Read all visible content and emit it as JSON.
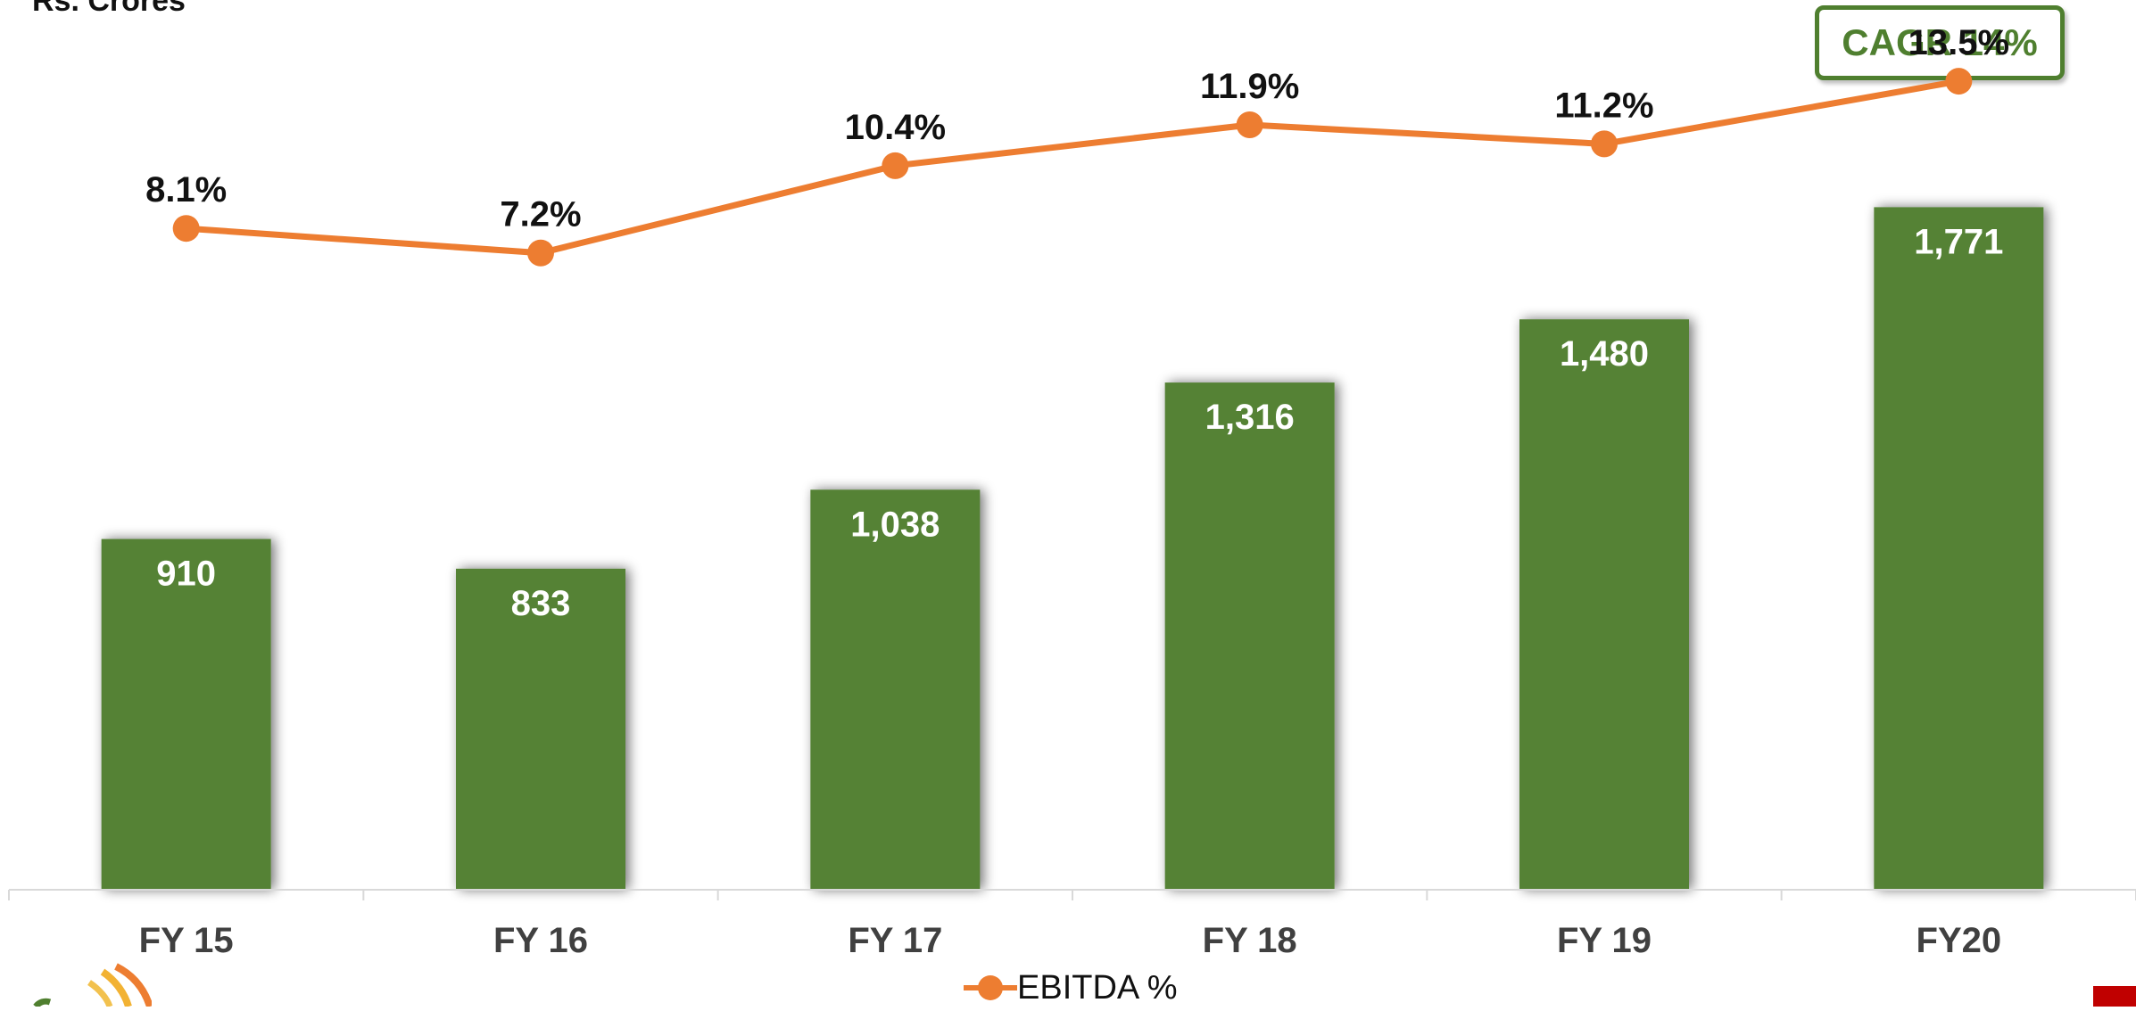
{
  "unit_label": "Rs. Crores",
  "cagr_label": "CAGR 14%",
  "colors": {
    "bar": "#548235",
    "line": "#ed7d31",
    "axis": "#d9d9d9",
    "accent_red": "#c00000"
  },
  "chart_data": {
    "type": "bar",
    "categories": [
      "FY 15",
      "FY 16",
      "FY 17",
      "FY 18",
      "FY 19",
      "FY20"
    ],
    "series": [
      {
        "values": [
          910,
          833,
          1038,
          1316,
          1480,
          1771
        ],
        "labels": [
          "910",
          "833",
          "1,038",
          "1,316",
          "1,480",
          "1,771"
        ]
      },
      {
        "name": "EBITDA %",
        "type": "line",
        "values": [
          8.1,
          7.2,
          10.4,
          11.9,
          11.2,
          13.5
        ],
        "labels": [
          "8.1%",
          "7.2%",
          "10.4%",
          "11.9%",
          "11.2%",
          "13.5%"
        ]
      }
    ],
    "legend": "bottom-center",
    "grid": false
  }
}
